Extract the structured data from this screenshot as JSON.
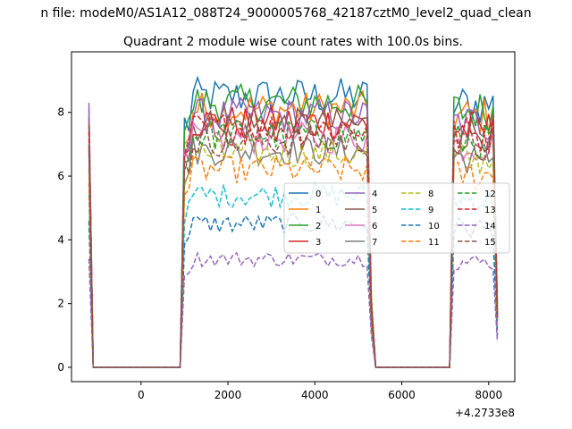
{
  "figure": {
    "suptitle": "n file: modeM0/AS1A12_088T24_9000005768_42187cztM0_level2_quad_clean",
    "offset_label": "+4.2733e8"
  },
  "chart_data": {
    "type": "line",
    "title": "Quadrant 2 module wise count rates with 100.0s bins.",
    "xlabel": "",
    "ylabel": "",
    "x_offset": 427330000,
    "xlim": [
      -1600,
      8600
    ],
    "ylim": [
      -0.45,
      9.9
    ],
    "xticks": [
      0,
      2000,
      4000,
      6000,
      8000
    ],
    "xtick_labels": [
      "0",
      "2000",
      "4000",
      "6000",
      "8000"
    ],
    "yticks": [
      0,
      2,
      4,
      6,
      8
    ],
    "ytick_labels": [
      "0",
      "2",
      "4",
      "6",
      "8"
    ],
    "grid": false,
    "legend": {
      "placement": "center-right",
      "ncol": 4
    },
    "segments": [
      {
        "x_start": -1200,
        "x_end": 950,
        "shape": "spike",
        "zero_from": -1100,
        "zero_to": 900
      },
      {
        "x_start": 950,
        "x_end": 5300,
        "shape": "plateau"
      },
      {
        "x_start": 5300,
        "x_end": 7200,
        "shape": "zero",
        "zero_from": 5400,
        "zero_to": 7100
      },
      {
        "x_start": 7200,
        "x_end": 8200,
        "shape": "plateau"
      }
    ],
    "step": 100,
    "series": [
      {
        "name": "0",
        "color": "#1f77b4",
        "style": "solid",
        "level": 8.5,
        "start": 8.1,
        "end": 2.0
      },
      {
        "name": "1",
        "color": "#ff7f0e",
        "style": "solid",
        "level": 8.1,
        "start": 7.8,
        "end": 2.0
      },
      {
        "name": "2",
        "color": "#2ca02c",
        "style": "solid",
        "level": 8.3,
        "start": 7.9,
        "end": 1.8
      },
      {
        "name": "3",
        "color": "#d62728",
        "style": "solid",
        "level": 7.7,
        "start": 7.8,
        "end": 1.7
      },
      {
        "name": "4",
        "color": "#9467bd",
        "style": "solid",
        "level": 7.9,
        "start": 8.3,
        "end": 1.6
      },
      {
        "name": "5",
        "color": "#8c564b",
        "style": "solid",
        "level": 7.6,
        "start": 7.6,
        "end": 1.6
      },
      {
        "name": "6",
        "color": "#e377c2",
        "style": "solid",
        "level": 7.2,
        "start": 7.2,
        "end": 1.5
      },
      {
        "name": "7",
        "color": "#7f7f7f",
        "style": "solid",
        "level": 6.8,
        "start": 6.8,
        "end": 1.5
      },
      {
        "name": "8",
        "color": "#bcbd22",
        "style": "dashed",
        "level": 6.7,
        "start": 6.2,
        "end": 1.3
      },
      {
        "name": "9",
        "color": "#17becf",
        "style": "dashed",
        "level": 5.4,
        "start": 5.4,
        "end": 1.2
      },
      {
        "name": "10",
        "color": "#1f77b4",
        "style": "dashed",
        "level": 4.5,
        "start": 4.6,
        "end": 1.0
      },
      {
        "name": "11",
        "color": "#ff7f0e",
        "style": "dashed",
        "level": 6.2,
        "start": 5.8,
        "end": 1.3
      },
      {
        "name": "12",
        "color": "#2ca02c",
        "style": "dashed",
        "level": 7.3,
        "start": 7.0,
        "end": 1.6
      },
      {
        "name": "13",
        "color": "#d62728",
        "style": "dashed",
        "level": 7.5,
        "start": 7.4,
        "end": 1.6
      },
      {
        "name": "14",
        "color": "#9467bd",
        "style": "dashed",
        "level": 3.4,
        "start": 3.4,
        "end": 0.8
      },
      {
        "name": "15",
        "color": "#8c564b",
        "style": "dashed",
        "level": 7.1,
        "start": 6.9,
        "end": 1.5
      }
    ]
  }
}
